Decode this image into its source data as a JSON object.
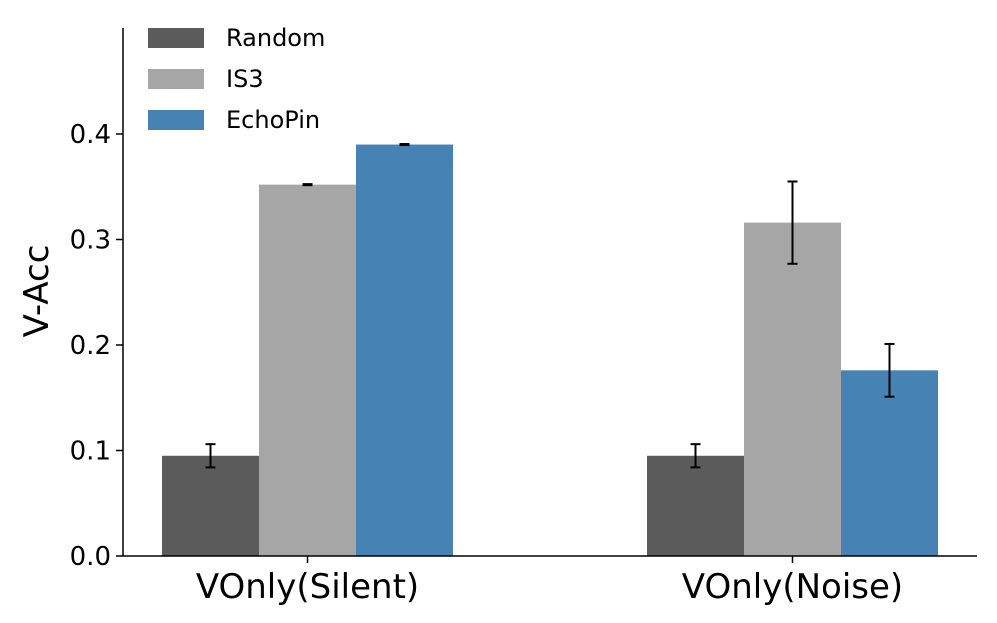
{
  "chart_data": {
    "type": "bar",
    "title": "",
    "xlabel": "",
    "ylabel": "V-Acc",
    "ylim": [
      0,
      0.5
    ],
    "yticks": [
      "0.0",
      "0.1",
      "0.2",
      "0.3",
      "0.4"
    ],
    "categories": [
      "VOnly(Silent)",
      "VOnly(Noise)"
    ],
    "series": [
      {
        "name": "Random",
        "color": "#5b5b5b",
        "values": [
          0.095,
          0.095
        ],
        "errors": [
          0.011,
          0.011
        ]
      },
      {
        "name": "IS3",
        "color": "#a6a6a6",
        "values": [
          0.352,
          0.316
        ],
        "errors": [
          0.0005,
          0.039
        ]
      },
      {
        "name": "EchoPin",
        "color": "#4682b4",
        "values": [
          0.39,
          0.176
        ],
        "errors": [
          0.0005,
          0.025
        ]
      }
    ],
    "legend_position": "top-left",
    "grid": false
  }
}
